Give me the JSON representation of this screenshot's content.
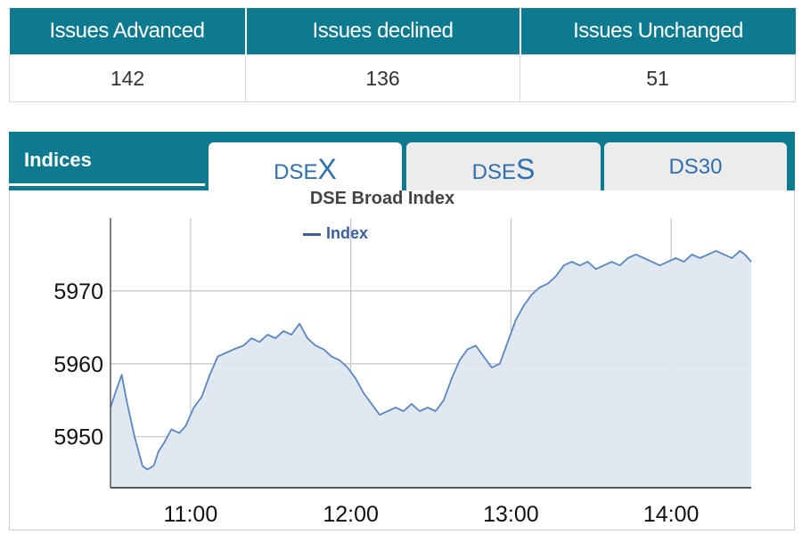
{
  "issues": {
    "headers": [
      "Issues Advanced",
      "Issues declined",
      "Issues Unchanged"
    ],
    "values": [
      "142",
      "136",
      "51"
    ]
  },
  "panel": {
    "title": "Indices",
    "tabs": [
      {
        "prefix": "DSE",
        "suffix": "X",
        "active": true
      },
      {
        "prefix": "DSE",
        "suffix": "S",
        "active": false
      },
      {
        "label": "DS30",
        "active": false
      }
    ]
  },
  "colors": {
    "header": "#0d7a8f",
    "line": "#5b86c2",
    "fill": "#dde6f0",
    "tab_text": "#2f6fb0"
  },
  "chart_data": {
    "type": "area",
    "title": "DSE Broad Index",
    "legend": "Index",
    "legend_position": "top-left",
    "grid": true,
    "xlabel": "",
    "ylabel": "",
    "x_ticks": [
      "11:00",
      "12:00",
      "13:00",
      "14:00"
    ],
    "y_ticks": [
      5950,
      5960,
      5970
    ],
    "xlim": [
      10.5,
      14.5
    ],
    "ylim": [
      5943,
      5980
    ],
    "series": [
      {
        "name": "Index",
        "x": [
          10.5,
          10.53,
          10.57,
          10.6,
          10.65,
          10.7,
          10.73,
          10.77,
          10.8,
          10.83,
          10.88,
          10.93,
          10.97,
          11.02,
          11.07,
          11.12,
          11.17,
          11.22,
          11.27,
          11.33,
          11.38,
          11.43,
          11.48,
          11.53,
          11.58,
          11.63,
          11.68,
          11.73,
          11.78,
          11.83,
          11.88,
          11.93,
          11.98,
          12.03,
          12.08,
          12.13,
          12.18,
          12.23,
          12.28,
          12.33,
          12.38,
          12.43,
          12.48,
          12.53,
          12.58,
          12.63,
          12.68,
          12.73,
          12.78,
          12.83,
          12.88,
          12.93,
          12.98,
          13.03,
          13.08,
          13.13,
          13.18,
          13.23,
          13.28,
          13.33,
          13.38,
          13.43,
          13.48,
          13.53,
          13.58,
          13.63,
          13.68,
          13.73,
          13.78,
          13.83,
          13.88,
          13.93,
          13.98,
          14.03,
          14.08,
          14.13,
          14.18,
          14.23,
          14.28,
          14.33,
          14.38,
          14.43,
          14.46,
          14.5
        ],
        "values": [
          5954,
          5956,
          5958.5,
          5955,
          5950,
          5946,
          5945.5,
          5946,
          5948,
          5949,
          5951,
          5950.5,
          5951.5,
          5954,
          5955.5,
          5958.5,
          5961,
          5961.5,
          5962,
          5962.5,
          5963.5,
          5963,
          5964,
          5963.5,
          5964.5,
          5964,
          5965.5,
          5963.5,
          5962.5,
          5962,
          5961,
          5960.5,
          5959.5,
          5958,
          5956,
          5954.5,
          5953,
          5953.5,
          5954,
          5953.5,
          5954.5,
          5953.5,
          5954,
          5953.5,
          5955,
          5958,
          5960.5,
          5962,
          5962.5,
          5961,
          5959.5,
          5960,
          5963,
          5966,
          5968,
          5969.5,
          5970.5,
          5971,
          5972,
          5973.5,
          5974,
          5973.5,
          5974,
          5973,
          5973.5,
          5974,
          5973.5,
          5974.5,
          5975,
          5974.5,
          5974,
          5973.5,
          5974,
          5974.5,
          5974,
          5975,
          5974.5,
          5975,
          5975.5,
          5975,
          5974.5,
          5975.5,
          5975,
          5974
        ]
      }
    ]
  }
}
